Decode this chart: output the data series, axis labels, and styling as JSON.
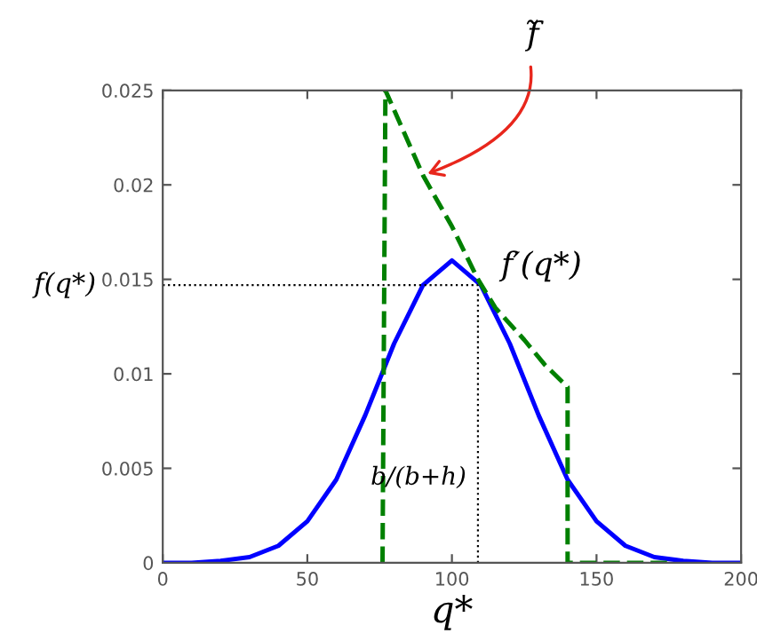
{
  "chart_data": {
    "type": "line",
    "xlabel": "q*",
    "xlim": [
      0,
      200
    ],
    "ylim": [
      0,
      0.025
    ],
    "xticks": [
      0,
      50,
      100,
      150,
      200
    ],
    "yticks": [
      0,
      0.005,
      0.01,
      0.015,
      0.02,
      0.025
    ],
    "grid": false,
    "legend": false,
    "series": [
      {
        "color": "#0000ff",
        "line_style": "solid",
        "x": [
          0,
          10,
          20,
          30,
          40,
          50,
          60,
          70,
          80,
          90,
          100,
          110,
          120,
          130,
          140,
          150,
          160,
          170,
          180,
          190,
          200
        ],
        "values": [
          0.0,
          0.0,
          0.0001,
          0.0003,
          0.0009,
          0.0022,
          0.0044,
          0.0078,
          0.0116,
          0.0147,
          0.016,
          0.0147,
          0.0116,
          0.0078,
          0.0044,
          0.0022,
          0.0009,
          0.0003,
          0.0001,
          0.0,
          0.0
        ]
      },
      {
        "color": "#008000",
        "line_style": "dashed",
        "x": [
          76,
          77,
          90,
          100,
          109,
          115,
          125,
          132,
          140,
          140,
          175
        ],
        "values": [
          0.0,
          0.025,
          0.0205,
          0.0178,
          0.015,
          0.0135,
          0.0118,
          0.0105,
          0.0093,
          0.0,
          0.0
        ]
      }
    ],
    "ref_lines": [
      {
        "axis": "y",
        "value": 0.0147,
        "label": "f(q*)",
        "color": "#000000",
        "line_style": "dotted"
      },
      {
        "axis": "x",
        "value": 109,
        "label": "b/(b+h)",
        "color": "#000000",
        "line_style": "dotted"
      }
    ],
    "annotations": [
      {
        "text": "f̃",
        "x": 90,
        "y": 0.0205
      },
      {
        "text": "f′(q*)",
        "x": 109,
        "y": 0.0147
      }
    ]
  }
}
